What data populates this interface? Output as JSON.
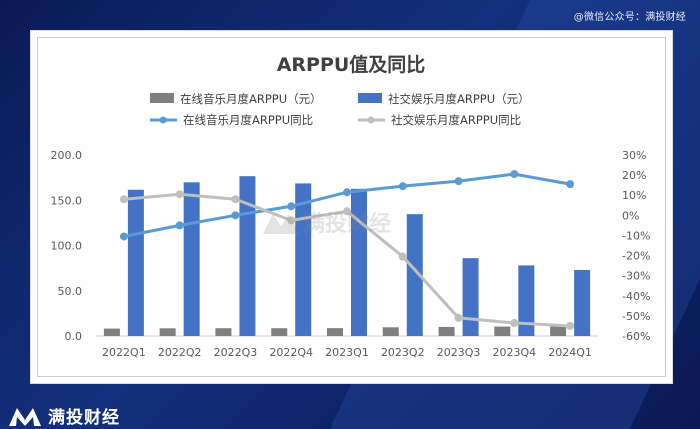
{
  "header": {
    "watermark": "@微信公众号：满投财经"
  },
  "brand": {
    "name": "满投财经"
  },
  "chart_watermark": "满投财经",
  "colors": {
    "bar_music": "#7f7f7f",
    "bar_social": "#4472c4",
    "line_music": "#5b9bd5",
    "line_social": "#bfbfbf"
  },
  "chart_data": {
    "type": "bar+line",
    "title": "ARPPU值及同比",
    "categories": [
      "2022Q1",
      "2022Q2",
      "2022Q3",
      "2022Q4",
      "2023Q1",
      "2023Q2",
      "2023Q3",
      "2023Q4",
      "2024Q1"
    ],
    "y_left": {
      "min": 0,
      "max": 200,
      "ticks": [
        "0.0",
        "50.0",
        "100.0",
        "150.0",
        "200.0"
      ]
    },
    "y_right": {
      "min": -60,
      "max": 30,
      "ticks": [
        "30%",
        "20%",
        "10%",
        "0%",
        "-10%",
        "-20%",
        "-30%",
        "-40%",
        "-50%",
        "-60%"
      ]
    },
    "bar_series": [
      {
        "name": "在线音乐月度ARPPU（元）",
        "values": [
          8.2,
          8.5,
          8.6,
          8.6,
          8.7,
          9.6,
          10.0,
          10.4,
          10.7
        ]
      },
      {
        "name": "社交娱乐月度ARPPU（元）",
        "values": [
          161.6,
          169.8,
          176.6,
          168.6,
          162.6,
          134.6,
          86.0,
          78.0,
          73.0
        ]
      }
    ],
    "line_series": [
      {
        "name": "在线音乐月度ARPPU同比",
        "values": [
          -10.5,
          -5.0,
          0.0,
          4.5,
          11.5,
          14.5,
          17.0,
          20.5,
          15.5
        ]
      },
      {
        "name": "社交娱乐月度ARPPU同比",
        "values": [
          8.0,
          10.5,
          8.0,
          -2.5,
          2.0,
          -20.5,
          -51.0,
          -53.5,
          -55.0
        ]
      }
    ]
  }
}
